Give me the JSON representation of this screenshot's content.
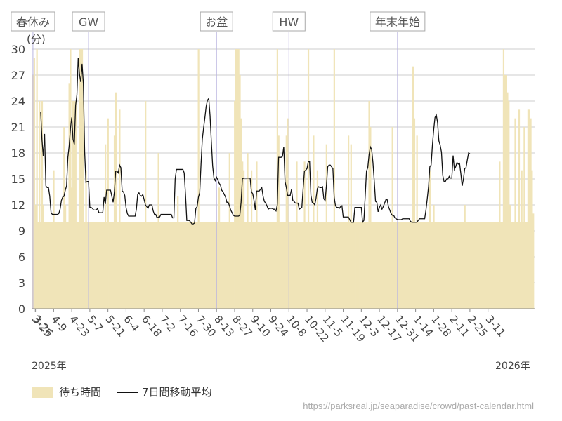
{
  "chart_data": {
    "type": "bar",
    "y_unit": "(分)",
    "y_ticks": [
      0,
      3,
      6,
      9,
      12,
      15,
      18,
      21,
      24,
      27,
      30
    ],
    "ylim": [
      0,
      30
    ],
    "x_tick_labels": [
      "3-26",
      "4-9",
      "4-23",
      "5-7",
      "5-21",
      "6-4",
      "6-18",
      "7-2",
      "7-16",
      "7-30",
      "8-13",
      "8-27",
      "9-10",
      "9-24",
      "10-8",
      "10-22",
      "11-5",
      "11-19",
      "12-3",
      "12-17",
      "12-31",
      "1-14",
      "1-28",
      "2-11",
      "2-25",
      "3-11",
      "3-25"
    ],
    "year_start": "2025年",
    "year_end": "2026年",
    "holidays": [
      {
        "label": "GW",
        "date": "5-6"
      },
      {
        "label": "お盆",
        "date": "8-13"
      },
      {
        "label": "HW",
        "date": "10-8"
      },
      {
        "label": "年末年始",
        "date": "12-31"
      },
      {
        "label": "春休み",
        "date": "3-24"
      }
    ],
    "series": [
      {
        "name": "待ち時間",
        "type": "bar",
        "color": "#f0e4b8",
        "start": "3-24",
        "values": [
          27,
          29,
          12,
          30,
          10,
          24,
          10,
          24,
          12,
          10,
          10,
          10,
          10,
          10,
          10,
          10,
          16,
          10,
          10,
          10,
          10,
          10,
          10,
          10,
          21,
          12,
          10,
          10,
          26,
          30,
          14,
          24,
          24,
          24,
          10,
          10,
          30,
          30,
          30,
          24,
          10,
          16,
          10,
          10,
          10,
          10,
          10,
          10,
          10,
          10,
          10,
          10,
          10,
          10,
          10,
          10,
          19,
          10,
          22,
          10,
          10,
          10,
          10,
          20,
          25,
          10,
          10,
          23,
          10,
          10,
          10,
          10,
          10,
          10,
          10,
          10,
          10,
          10,
          10,
          10,
          10,
          10,
          10,
          10,
          10,
          10,
          10,
          24,
          10,
          10,
          10,
          10,
          10,
          10,
          10,
          10,
          10,
          18,
          10,
          10,
          10,
          10,
          10,
          10,
          10,
          10,
          10,
          10,
          10,
          10,
          10,
          10,
          13,
          10,
          10,
          10,
          10,
          10,
          10,
          10,
          10,
          10,
          10,
          10,
          10,
          10,
          10,
          10,
          30,
          10,
          10,
          10,
          10,
          10,
          10,
          10,
          10,
          10,
          10,
          10,
          10,
          10,
          10,
          10,
          14,
          10,
          10,
          10,
          10,
          10,
          10,
          10,
          18,
          10,
          10,
          10,
          24,
          30,
          30,
          30,
          27,
          22,
          17,
          16,
          10,
          10,
          18,
          10,
          10,
          16,
          10,
          10,
          10,
          17,
          10,
          10,
          10,
          10,
          10,
          10,
          10,
          10,
          10,
          10,
          10,
          10,
          10,
          10,
          10,
          30,
          20,
          10,
          10,
          10,
          10,
          10,
          20,
          22,
          10,
          10,
          10,
          10,
          10,
          10,
          17,
          10,
          10,
          10,
          10,
          10,
          17,
          10,
          10,
          30,
          10,
          10,
          10,
          20,
          10,
          10,
          16,
          10,
          10,
          10,
          10,
          10,
          10,
          19,
          10,
          10,
          10,
          10,
          10,
          30,
          10,
          10,
          10,
          10,
          10,
          10,
          10,
          10,
          10,
          10,
          20,
          10,
          19,
          10,
          10,
          10,
          10,
          10,
          10,
          10,
          10,
          10,
          10,
          10,
          10,
          10,
          24,
          21,
          10,
          10,
          10,
          10,
          10,
          10,
          10,
          10,
          10,
          10,
          10,
          10,
          10,
          10,
          10,
          10,
          21,
          10,
          10,
          10,
          10,
          10,
          10,
          10,
          10,
          10,
          10,
          10,
          10,
          10,
          10,
          10,
          28,
          22,
          10,
          20,
          10,
          10,
          10,
          10,
          10,
          10,
          10,
          10,
          10,
          16,
          10,
          10,
          12,
          10,
          10,
          10,
          10,
          10,
          10,
          10,
          10,
          10,
          10,
          10,
          10,
          10,
          10,
          10,
          10,
          10,
          10,
          10,
          10,
          10,
          10,
          10,
          12,
          10,
          10,
          10,
          10,
          10,
          10,
          10,
          10,
          10,
          10,
          10,
          10,
          10,
          10,
          10,
          10,
          10,
          10,
          10,
          10,
          10,
          10,
          10,
          10,
          10,
          10,
          17,
          10,
          10,
          30,
          27,
          27,
          25,
          24,
          12,
          10,
          10,
          10,
          22,
          10,
          10,
          23,
          10,
          16,
          10,
          21,
          10,
          10,
          23,
          23,
          22,
          16,
          11
        ]
      },
      {
        "name": "7日間移動平均",
        "type": "line",
        "color": "#111111",
        "start": "3-24",
        "values": [
          null,
          null,
          null,
          null,
          null,
          null,
          22.7,
          19.5,
          17.6,
          20.2,
          14.2,
          14.0,
          14.0,
          13.0,
          11.1,
          10.9,
          10.9,
          10.9,
          10.9,
          10.9,
          11.0,
          11.5,
          12.5,
          12.9,
          13.0,
          13.7,
          14.2,
          17.5,
          18.8,
          20.8,
          22.1,
          19.6,
          19.0,
          23.5,
          24.7,
          29.0,
          27.1,
          26.2,
          28.3,
          26.0,
          18.1,
          14.6,
          14.7,
          14.7,
          11.7,
          11.7,
          11.6,
          11.4,
          11.4,
          11.4,
          11.6,
          11.1,
          11.1,
          11.1,
          11.1,
          12.9,
          12.1,
          13.7,
          13.7,
          13.7,
          13.7,
          13.0,
          12.3,
          13.5,
          15.9,
          15.9,
          15.7,
          16.6,
          16.3,
          13.6,
          13.5,
          13.1,
          11.7,
          11.0,
          10.7,
          10.7,
          10.7,
          10.7,
          10.7,
          10.7,
          11.5,
          13.2,
          13.4,
          13.1,
          13.0,
          13.2,
          12.6,
          12.0,
          11.8,
          11.6,
          12.0,
          12.0,
          12.0,
          11.3,
          10.9,
          10.9,
          10.5,
          10.6,
          10.6,
          10.9,
          10.9,
          10.9,
          10.9,
          10.9,
          10.9,
          10.9,
          10.9,
          10.9,
          10.5,
          10.5,
          15.0,
          16.1,
          16.1,
          16.1,
          16.1,
          16.1,
          16.1,
          15.7,
          13.2,
          10.2,
          10.2,
          10.2,
          10.0,
          9.8,
          9.8,
          9.9,
          11.6,
          11.8,
          12.9,
          13.4,
          16.7,
          19.6,
          20.9,
          22.1,
          23.4,
          24.1,
          24.3,
          22.3,
          19.3,
          16.5,
          15.1,
          14.8,
          15.2,
          14.9,
          14.5,
          14.3,
          13.7,
          13.5,
          13.2,
          12.9,
          12.3,
          12.3,
          11.9,
          11.4,
          11.1,
          10.8,
          10.7,
          10.7,
          10.7,
          10.7,
          10.8,
          12.3,
          15.0,
          15.1,
          15.1,
          15.1,
          15.1,
          15.1,
          15.1,
          13.5,
          13.3,
          12.5,
          11.4,
          13.6,
          13.6,
          13.6,
          13.8,
          14.0,
          13.0,
          12.4,
          12.2,
          11.9,
          11.5,
          11.6,
          11.6,
          11.6,
          11.5,
          11.5,
          11.3,
          12.0,
          17.5,
          17.5,
          17.5,
          17.6,
          18.7,
          14.7,
          14.0,
          13.1,
          13.1,
          13.1,
          13.8,
          12.5,
          12.4,
          12.2,
          12.2,
          12.2,
          11.5,
          11.6,
          11.7,
          13.9,
          15.9,
          16.0,
          16.2,
          17.0,
          17.0,
          13.1,
          12.3,
          12.2,
          12.0,
          12.8,
          13.9,
          14.1,
          14.0,
          14.0,
          14.1,
          12.7,
          12.5,
          14.2,
          16.4,
          16.6,
          16.6,
          16.4,
          16.2,
          12.9,
          11.9,
          11.7,
          11.7,
          11.6,
          11.8,
          11.9,
          10.6,
          10.6,
          10.6,
          10.6,
          10.6,
          10.3,
          10.0,
          10.0,
          10.0,
          11.7,
          11.7,
          11.7,
          11.7,
          11.7,
          11.7,
          10.0,
          10.2,
          13.0,
          15.9,
          16.3,
          17.8,
          18.7,
          18.4,
          16.9,
          14.8,
          12.4,
          12.3,
          11.2,
          11.7,
          12.0,
          11.5,
          11.8,
          12.2,
          12.6,
          12.6,
          11.8,
          11.4,
          11.0,
          10.8,
          10.8,
          10.5,
          10.4,
          10.3,
          10.3,
          10.3,
          10.3,
          10.4,
          10.4,
          10.4,
          10.4,
          10.4,
          10.4,
          10.1,
          10.0,
          10.0,
          10.0,
          10.0,
          10.0,
          10.2,
          10.4,
          10.4,
          10.4,
          10.4,
          10.4,
          11.4,
          12.7,
          14.1,
          16.4,
          16.6,
          18.9,
          20.7,
          22.1,
          22.4,
          21.5,
          19.4,
          18.9,
          18.1,
          15.4,
          14.7,
          14.7,
          15.0,
          15.0,
          15.3,
          15.1,
          15.1,
          17.7,
          16.1,
          16.4,
          16.9,
          16.7,
          16.8,
          15.6,
          14.2,
          15.0,
          16.2,
          16.3,
          17.2,
          18.0,
          17.9
        ]
      }
    ],
    "legend": [
      "待ち時間",
      "7日間移動平均"
    ],
    "grid": true
  },
  "legend_labels": {
    "bar": "待ち時間",
    "line": "7日間移動平均"
  },
  "source_url": "https://parksreal.jp/seaparadise/crowd/past-calendar.html"
}
